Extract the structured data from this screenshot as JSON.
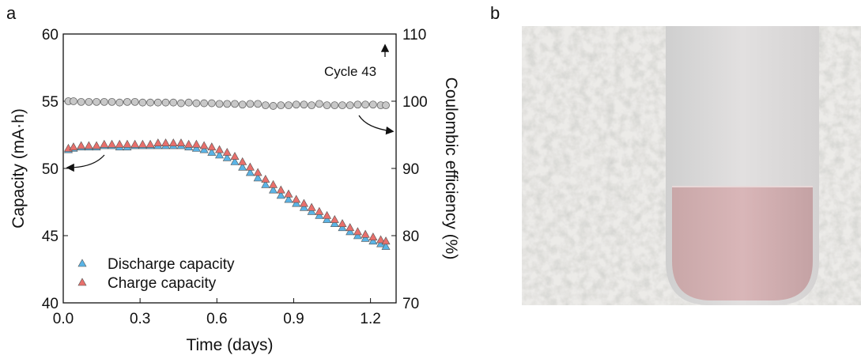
{
  "panels": [
    "a",
    "b"
  ],
  "chart_data": {
    "type": "scatter",
    "xlabel": "Time (days)",
    "ylabel": "Capacity (mA·h)",
    "y2label": "Coulombic efficiency (%)",
    "annotation": "Cycle 43",
    "xlim": [
      0,
      1.3
    ],
    "xticks": [
      {
        "value": 0,
        "label": "0.0"
      },
      0.3,
      0.6,
      0.9,
      1.2
    ],
    "ylim": [
      40,
      60
    ],
    "yticks": [
      40,
      45,
      50,
      55,
      60
    ],
    "y2lim": [
      70,
      110
    ],
    "y2ticks": [
      70,
      80,
      90,
      100,
      110
    ],
    "legend": "lower left",
    "x": [
      0.02,
      0.04,
      0.07,
      0.1,
      0.13,
      0.16,
      0.19,
      0.22,
      0.25,
      0.28,
      0.31,
      0.34,
      0.37,
      0.4,
      0.43,
      0.46,
      0.49,
      0.52,
      0.55,
      0.58,
      0.61,
      0.64,
      0.67,
      0.7,
      0.73,
      0.76,
      0.79,
      0.82,
      0.85,
      0.88,
      0.91,
      0.94,
      0.97,
      1.0,
      1.03,
      1.06,
      1.09,
      1.12,
      1.15,
      1.18,
      1.21,
      1.24,
      1.26
    ],
    "series": [
      {
        "name": "Discharge capacity",
        "color": "#5ab4e6",
        "marker": "triangle",
        "values": [
          51.4,
          51.5,
          51.6,
          51.6,
          51.6,
          51.7,
          51.7,
          51.6,
          51.6,
          51.7,
          51.7,
          51.7,
          51.7,
          51.7,
          51.7,
          51.7,
          51.6,
          51.5,
          51.4,
          51.2,
          51.0,
          50.8,
          50.5,
          50.1,
          49.7,
          49.3,
          48.8,
          48.4,
          48.0,
          47.7,
          47.4,
          47.1,
          46.8,
          46.5,
          46.2,
          45.9,
          45.6,
          45.3,
          45.0,
          44.8,
          44.6,
          44.4,
          44.2
        ]
      },
      {
        "name": "Charge capacity",
        "color": "#e8706c",
        "marker": "triangle",
        "values": [
          51.5,
          51.6,
          51.7,
          51.7,
          51.7,
          51.8,
          51.8,
          51.8,
          51.8,
          51.8,
          51.8,
          51.8,
          51.9,
          51.9,
          51.9,
          51.9,
          51.8,
          51.8,
          51.7,
          51.6,
          51.4,
          51.2,
          50.9,
          50.5,
          50.1,
          49.7,
          49.2,
          48.8,
          48.4,
          48.1,
          47.7,
          47.4,
          47.1,
          46.8,
          46.5,
          46.2,
          45.9,
          45.6,
          45.3,
          45.1,
          44.9,
          44.7,
          44.6
        ]
      },
      {
        "color": "#c8c8c8",
        "marker": "circle",
        "axis": "y2",
        "values": [
          100.0,
          100.0,
          99.9,
          99.9,
          99.9,
          99.9,
          99.9,
          99.8,
          99.9,
          99.9,
          99.8,
          99.8,
          99.8,
          99.8,
          99.8,
          99.7,
          99.8,
          99.7,
          99.7,
          99.7,
          99.6,
          99.6,
          99.6,
          99.5,
          99.6,
          99.6,
          99.4,
          99.3,
          99.4,
          99.4,
          99.5,
          99.5,
          99.4,
          99.6,
          99.4,
          99.4,
          99.4,
          99.4,
          99.5,
          99.5,
          99.5,
          99.4,
          99.4
        ]
      }
    ]
  }
}
